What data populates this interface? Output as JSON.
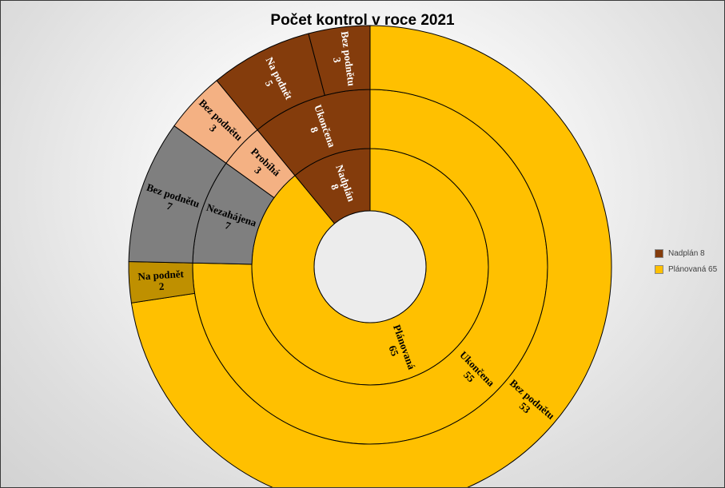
{
  "chart_data": {
    "type": "sunburst",
    "title": "Počet kontrol v roce 2021",
    "colors": {
      "Plánovaná": "#FFC000",
      "Plánovaná_na_podnet": "#BF9000",
      "Nezahájena": "#7F7F7F",
      "Probíhá": "#F4B183",
      "Nadplán": "#843C0C"
    },
    "rings": [
      [
        {
          "label": "Plánovaná",
          "value": 65,
          "color": "#FFC000",
          "text_color": "#000000"
        },
        {
          "label": "Nadplán",
          "value": 8,
          "color": "#843C0C",
          "text_color": "#FFFFFF"
        }
      ],
      [
        {
          "label": "Ukončena",
          "value": 55,
          "color": "#FFC000",
          "text_color": "#000000"
        },
        {
          "label": "Nezahájena",
          "value": 7,
          "color": "#7F7F7F",
          "text_color": "#000000"
        },
        {
          "label": "Probíhá",
          "value": 3,
          "color": "#F4B183",
          "text_color": "#000000"
        },
        {
          "label": "Ukončena",
          "value": 8,
          "color": "#843C0C",
          "text_color": "#FFFFFF"
        }
      ],
      [
        {
          "label": "Bez podnětu",
          "value": 53,
          "color": "#FFC000",
          "text_color": "#000000"
        },
        {
          "label": "Na podnět",
          "value": 2,
          "color": "#BF9000",
          "text_color": "#000000"
        },
        {
          "label": "Bez podnětu",
          "value": 7,
          "color": "#7F7F7F",
          "text_color": "#000000"
        },
        {
          "label": "Bez podnětu",
          "value": 3,
          "color": "#F4B183",
          "text_color": "#000000"
        },
        {
          "label": "Na podnět",
          "value": 5,
          "color": "#843C0C",
          "text_color": "#FFFFFF"
        },
        {
          "label": "Bez podnětu",
          "value": 3,
          "color": "#843C0C",
          "text_color": "#FFFFFF"
        }
      ]
    ],
    "legend": [
      {
        "label": "Nadplán 8",
        "color": "#843C0C"
      },
      {
        "label": "Plánovaná 65",
        "color": "#FFC000"
      }
    ],
    "legend_position": "right"
  }
}
